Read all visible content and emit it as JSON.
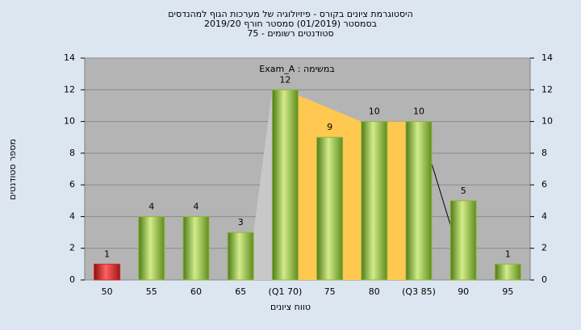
{
  "chart_data": {
    "type": "bar",
    "title": "היסטוגרמת ציונים בקורס - פיזיולוגיה של מערכות הגוף למהנדסים",
    "subtitle": [
      "בסמסטר  (01/2019)  סמסטר חורף  2019/20",
      "סטודנטים רשומים - 75"
    ],
    "annotation": "Exam_A : במשימה",
    "x_label": "טווח ציונים",
    "y_label": "מספר סטודנטים",
    "categories": [
      "50",
      "55",
      "60",
      "65",
      "(Q1 70)",
      "75",
      "80",
      "(Q3 85)",
      "90",
      "95"
    ],
    "values": [
      1,
      4,
      4,
      3,
      12,
      9,
      10,
      10,
      5,
      1
    ],
    "colors": [
      "#d42828",
      "#8fb83c",
      "#8fb83c",
      "#8fb83c",
      "#8fb83c",
      "#8fb83c",
      "#8fb83c",
      "#8fb83c",
      "#8fb83c",
      "#8fb83c"
    ],
    "ylim": [
      0,
      14
    ],
    "yticks": [
      0,
      2,
      4,
      6,
      8,
      10,
      12,
      14
    ],
    "y2lim": [
      0,
      14
    ],
    "y2ticks": [
      0,
      2,
      4,
      6,
      8,
      10,
      12,
      14
    ],
    "grid": true
  }
}
